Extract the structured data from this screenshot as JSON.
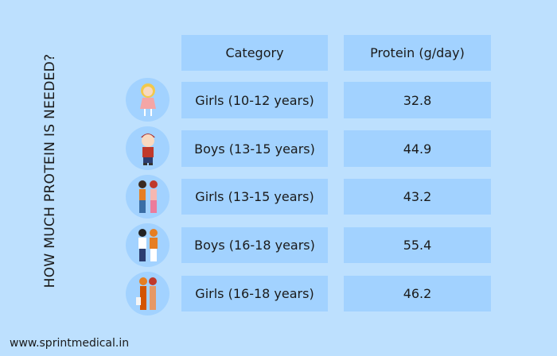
{
  "title": "HOW MUCH PROTEIN IS NEEDED?",
  "footer": "www.sprintmedical.in",
  "colors": {
    "background": "#bde0fe",
    "cell": "#a2d2ff"
  },
  "table": {
    "headers": [
      "Category",
      "Protein (g/day)"
    ],
    "rows": [
      {
        "category": "Girls (10-12 years)",
        "protein": "32.8",
        "icon": "girl-icon"
      },
      {
        "category": "Boys (13-15 years)",
        "protein": "44.9",
        "icon": "boy-icon"
      },
      {
        "category": "Girls (13-15 years)",
        "protein": "43.2",
        "icon": "two-girls-icon"
      },
      {
        "category": "Boys (16-18 years)",
        "protein": "55.4",
        "icon": "two-boys-icon"
      },
      {
        "category": "Girls (16-18 years)",
        "protein": "46.2",
        "icon": "teen-girls-icon"
      }
    ]
  }
}
